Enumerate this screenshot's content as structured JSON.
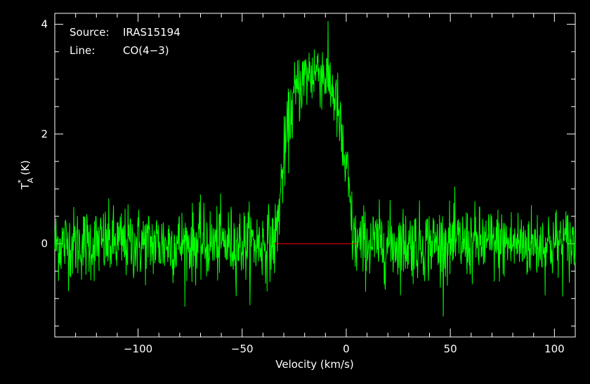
{
  "chart_data": {
    "type": "line",
    "title": "",
    "xlabel": "Velocity (km/s)",
    "ylabel_main": "T",
    "ylabel_sub": "A",
    "ylabel_sup": "*",
    "ylabel_unit": "(K)",
    "xlim": [
      -140,
      110
    ],
    "ylim": [
      -1.7,
      4.2
    ],
    "x_ticks": [
      -100,
      -50,
      0,
      50,
      100
    ],
    "x_tick_labels": [
      "−100",
      "−50",
      "0",
      "50",
      "100"
    ],
    "y_ticks": [
      0,
      2,
      4
    ],
    "y_tick_labels": [
      "0",
      "2",
      "4"
    ],
    "grid": false,
    "annotations": {
      "source_key": "Source:",
      "source_value": "IRAS15194",
      "line_key": "Line:",
      "line_value": "CO(4−3)"
    },
    "series": [
      {
        "color": "#00ff00",
        "x": [
          -140,
          -135,
          -130,
          -125,
          -120,
          -115,
          -110,
          -105,
          -100,
          -95,
          -90,
          -85,
          -80,
          -75,
          -70,
          -65,
          -60,
          -55,
          -50,
          -45,
          -40,
          -37,
          -35,
          -34,
          -33,
          -32,
          -31,
          -30,
          -29,
          -28,
          -27,
          -26,
          -25,
          -24,
          -23,
          -22,
          -21,
          -20,
          -19,
          -18,
          -17,
          -16,
          -15,
          -14,
          -13,
          -12,
          -11,
          -10,
          -9,
          -8,
          -7,
          -6,
          -5,
          -4,
          -3,
          -2,
          -1,
          0,
          1,
          2,
          3,
          4,
          5,
          6,
          7,
          10,
          15,
          20,
          25,
          30,
          35,
          40,
          45,
          50,
          55,
          60,
          65,
          70,
          75,
          80,
          85,
          90,
          95,
          100,
          105,
          110
        ],
        "y": [
          0,
          0,
          0,
          0,
          0,
          0,
          0,
          0,
          0,
          0,
          0,
          0,
          0,
          0,
          0,
          0,
          0,
          0,
          0,
          0,
          0,
          0,
          0,
          0.1,
          0.35,
          0.75,
          1.15,
          1.5,
          1.8,
          2.05,
          2.3,
          2.5,
          2.65,
          2.75,
          2.85,
          2.92,
          2.97,
          3.0,
          3.05,
          3.08,
          3.1,
          3.12,
          3.15,
          3.17,
          3.17,
          3.15,
          3.1,
          3.05,
          3.0,
          2.92,
          2.85,
          2.75,
          2.6,
          2.4,
          2.1,
          1.8,
          1.5,
          1.3,
          1.1,
          0.6,
          0.2,
          0.05,
          0,
          0,
          0,
          0,
          0,
          0,
          0,
          0,
          0,
          0,
          0,
          0,
          0,
          0,
          0,
          0,
          0,
          0,
          0,
          0,
          0,
          0,
          0,
          0
        ],
        "noise_rms": 0.33
      },
      {
        "color": "#ff0000",
        "x": [
          -35,
          5
        ],
        "y": [
          0,
          0
        ]
      }
    ]
  }
}
